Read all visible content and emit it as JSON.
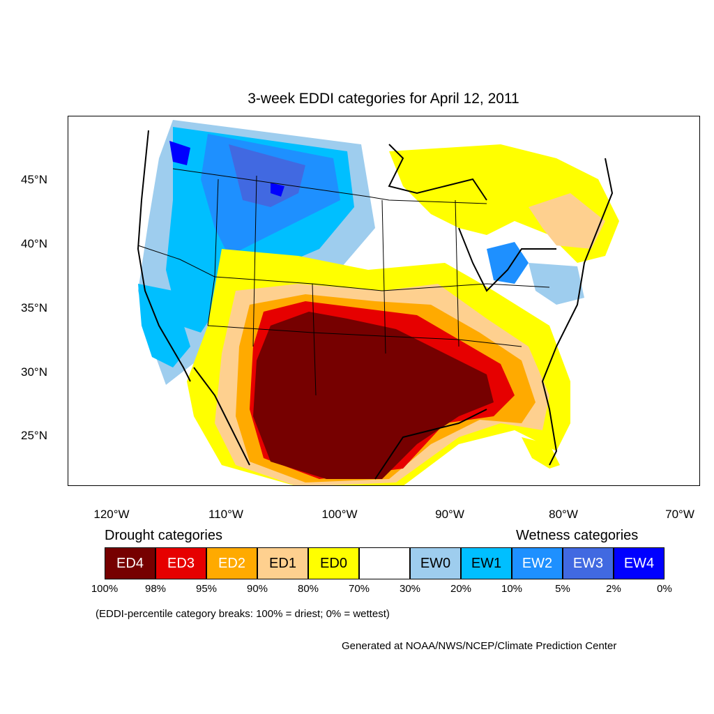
{
  "title": "3-week EDDI categories for April 12, 2011",
  "lat_labels": [
    "45°N",
    "40°N",
    "35°N",
    "30°N",
    "25°N"
  ],
  "lon_labels": [
    "120°W",
    "110°W",
    "100°W",
    "90°W",
    "80°W",
    "70°W"
  ],
  "legend": {
    "drought_heading": "Drought categories",
    "wetness_heading": "Wetness categories",
    "categories": [
      {
        "label": "ED4",
        "color": "#760000",
        "text_color": "#ffffff"
      },
      {
        "label": "ED3",
        "color": "#e60000",
        "text_color": "#ffffff"
      },
      {
        "label": "ED2",
        "color": "#ffaa00",
        "text_color": "#ffffff"
      },
      {
        "label": "ED1",
        "color": "#fed08f",
        "text_color": "#000000"
      },
      {
        "label": "ED0",
        "color": "#ffff00",
        "text_color": "#000000"
      },
      {
        "label": "",
        "color": "#ffffff",
        "text_color": "#000000"
      },
      {
        "label": "EW0",
        "color": "#9ecdee",
        "text_color": "#000000"
      },
      {
        "label": "EW1",
        "color": "#00bfff",
        "text_color": "#000000"
      },
      {
        "label": "EW2",
        "color": "#1e90ff",
        "text_color": "#ffffff"
      },
      {
        "label": "EW3",
        "color": "#4169e1",
        "text_color": "#ffffff"
      },
      {
        "label": "EW4",
        "color": "#0000ff",
        "text_color": "#ffffff"
      }
    ],
    "percentiles": [
      "100%",
      "98%",
      "95%",
      "90%",
      "80%",
      "70%",
      "30%",
      "20%",
      "10%",
      "5%",
      "2%",
      "0%"
    ]
  },
  "note": "(EDDI-percentile category breaks: 100% = driest; 0% = wettest)",
  "credit": "Generated at NOAA/NWS/NCEP/Climate Prediction Center"
}
